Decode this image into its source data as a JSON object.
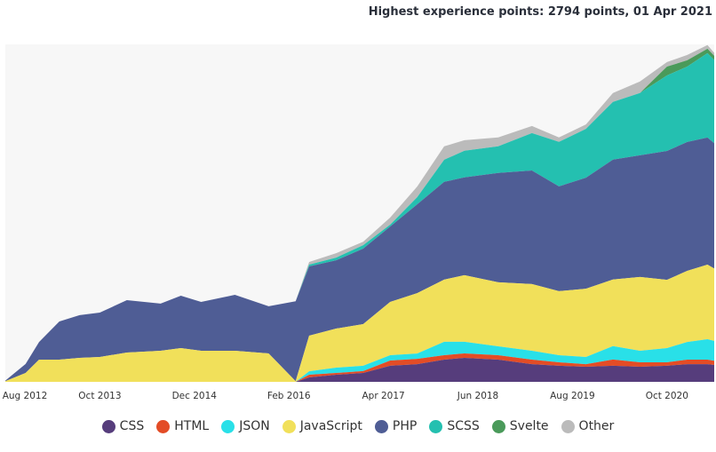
{
  "chart_data": {
    "type": "area",
    "stacked": true,
    "title": "Highest experience points: 2794 points, 01 Apr 2021",
    "xlabel": "",
    "ylabel": "",
    "ylim": [
      0,
      2800
    ],
    "xlim": [
      "2012-08",
      "2021-05"
    ],
    "x_ticks": [
      {
        "label": "Aug 2012",
        "date": "2012-08"
      },
      {
        "label": "Oct 2013",
        "date": "2013-10"
      },
      {
        "label": "Dec 2014",
        "date": "2014-12"
      },
      {
        "label": "Feb 2016",
        "date": "2016-02"
      },
      {
        "label": "Apr 2017",
        "date": "2017-04"
      },
      {
        "label": "Jun 2018",
        "date": "2018-06"
      },
      {
        "label": "Aug 2019",
        "date": "2019-08"
      },
      {
        "label": "Oct 2020",
        "date": "2020-10"
      }
    ],
    "grid": false,
    "legend_position": "bottom",
    "x": [
      "2012-08",
      "2012-11",
      "2013-01",
      "2013-04",
      "2013-07",
      "2013-10",
      "2014-02",
      "2014-07",
      "2014-10",
      "2015-01",
      "2015-06",
      "2015-11",
      "2016-03",
      "2016-05",
      "2016-09",
      "2017-01",
      "2017-05",
      "2017-09",
      "2018-01",
      "2018-04",
      "2018-09",
      "2019-02",
      "2019-06",
      "2019-10",
      "2020-02",
      "2020-06",
      "2020-10",
      "2021-01",
      "2021-04",
      "2021-05"
    ],
    "series": [
      {
        "name": "CSS",
        "color": "#563d7c",
        "values": [
          0,
          0,
          0,
          0,
          0,
          0,
          0,
          0,
          0,
          0,
          0,
          0,
          0,
          37,
          59,
          74,
          133,
          147,
          184,
          199,
          184,
          147,
          133,
          125,
          133,
          125,
          133,
          147,
          147,
          140
        ]
      },
      {
        "name": "HTML",
        "color": "#e34c26",
        "values": [
          0,
          0,
          0,
          0,
          0,
          0,
          0,
          0,
          0,
          0,
          0,
          0,
          0,
          22,
          15,
          15,
          44,
          44,
          37,
          37,
          37,
          37,
          29,
          22,
          52,
          37,
          29,
          37,
          37,
          35
        ]
      },
      {
        "name": "JSON",
        "color": "#29e0e8",
        "values": [
          0,
          0,
          0,
          0,
          0,
          0,
          0,
          0,
          0,
          0,
          0,
          0,
          0,
          29,
          44,
          44,
          44,
          44,
          111,
          96,
          74,
          74,
          59,
          59,
          111,
          96,
          118,
          147,
          170,
          165
        ]
      },
      {
        "name": "JavaScript",
        "color": "#f1e05a",
        "values": [
          5,
          74,
          184,
          184,
          199,
          206,
          243,
          258,
          280,
          258,
          258,
          236,
          5,
          295,
          324,
          346,
          442,
          501,
          516,
          553,
          531,
          553,
          531,
          567,
          553,
          612,
          567,
          590,
          619,
          600
        ]
      },
      {
        "name": "PHP",
        "color": "#4f5d95",
        "values": [
          5,
          74,
          147,
          317,
          354,
          369,
          435,
          391,
          435,
          405,
          464,
          391,
          663,
          575,
          567,
          626,
          626,
          737,
          811,
          811,
          907,
          943,
          870,
          921,
          995,
          1010,
          1069,
          1069,
          1054,
          1040
        ]
      },
      {
        "name": "SCSS",
        "color": "#24c0b0",
        "values": [
          0,
          0,
          0,
          0,
          0,
          0,
          0,
          0,
          0,
          0,
          0,
          0,
          0,
          15,
          22,
          29,
          15,
          59,
          184,
          221,
          221,
          310,
          369,
          405,
          479,
          516,
          626,
          626,
          700,
          690
        ]
      },
      {
        "name": "Svelte",
        "color": "#4a9a5a",
        "values": [
          0,
          0,
          0,
          0,
          0,
          0,
          0,
          0,
          0,
          0,
          0,
          0,
          0,
          0,
          0,
          0,
          0,
          0,
          0,
          0,
          0,
          0,
          0,
          0,
          0,
          0,
          74,
          52,
          37,
          35
        ]
      },
      {
        "name": "Other",
        "color": "#bbbbbb",
        "values": [
          0,
          0,
          0,
          0,
          0,
          0,
          0,
          0,
          0,
          0,
          0,
          0,
          0,
          22,
          37,
          29,
          59,
          88,
          111,
          88,
          74,
          59,
          37,
          37,
          74,
          96,
          37,
          44,
          30,
          25
        ]
      }
    ]
  }
}
